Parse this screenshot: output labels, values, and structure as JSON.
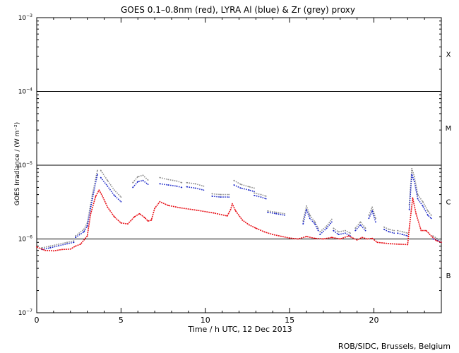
{
  "footer": "ROB/SIDC, Brussels, Belgium",
  "colors": {
    "goes": "#e8141b",
    "al": "#1a26c8",
    "zr": "#8c8c8c",
    "axis": "#000000"
  },
  "chart_data": {
    "type": "line",
    "title": "GOES 0.1–0.8nm (red), LYRA Al (blue) & Zr (grey) proxy",
    "xlabel": "Time / h UTC, 12 Dec 2013",
    "ylabel": "GOES Irradiance / (W m⁻²)",
    "xlim": [
      0,
      24
    ],
    "ylim": [
      1e-07,
      0.001
    ],
    "yscale": "log",
    "x_ticks": [
      0,
      5,
      10,
      15,
      20
    ],
    "x_tick_labels": [
      "0",
      "5",
      "10",
      "15",
      "20"
    ],
    "y_tick_labels": [
      {
        "value": 1e-07,
        "base": "10",
        "exp": "−7"
      },
      {
        "value": 1e-06,
        "base": "10",
        "exp": "−6"
      },
      {
        "value": 1e-05,
        "base": "10",
        "exp": "−5"
      },
      {
        "value": 0.0001,
        "base": "10",
        "exp": "−4"
      },
      {
        "value": 0.001,
        "base": "10",
        "exp": "−3"
      }
    ],
    "class_thresholds": [
      1e-06,
      1e-05,
      0.0001
    ],
    "flare_classes": [
      {
        "label": "X",
        "value": 0.00032
      },
      {
        "label": "M",
        "value": 3.2e-05
      },
      {
        "label": "C",
        "value": 3.2e-06
      },
      {
        "label": "B",
        "value": 3.2e-07
      }
    ],
    "series": [
      {
        "name": "GOES 0.1–0.8nm",
        "color": "red",
        "segments": [
          {
            "x": [
              0,
              0.5,
              1,
              1.5,
              2,
              2.3,
              2.6,
              3.0,
              3.2,
              3.5,
              3.7,
              3.9,
              4.2,
              4.6,
              5.0,
              5.4,
              5.8,
              6.1,
              6.4,
              6.6,
              6.8,
              7.0,
              7.3,
              7.8,
              8.5,
              9.5,
              10.5,
              11.3,
              11.5,
              11.6,
              11.8,
              12.2,
              12.6,
              13.0,
              13.5,
              14.0,
              15.0,
              15.5,
              16.0,
              16.5,
              17.0,
              17.5,
              18.0,
              18.5,
              19.0,
              19.3,
              19.6,
              19.9,
              20.2,
              20.6,
              21.0,
              21.5,
              22.0,
              22.1,
              22.3,
              22.5,
              22.8,
              23.1,
              23.4,
              23.7,
              24.0
            ],
            "y": [
              7.8e-07,
              7e-07,
              6.9e-07,
              7.2e-07,
              7.3e-07,
              8e-07,
              8.5e-07,
              1.1e-06,
              2.2e-06,
              3.8e-06,
              4.6e-06,
              3.8e-06,
              2.7e-06,
              2e-06,
              1.65e-06,
              1.6e-06,
              2e-06,
              2.2e-06,
              1.95e-06,
              1.75e-06,
              1.8e-06,
              2.6e-06,
              3.2e-06,
              2.85e-06,
              2.65e-06,
              2.45e-06,
              2.25e-06,
              2.05e-06,
              2.5e-06,
              3e-06,
              2.4e-06,
              1.8e-06,
              1.55e-06,
              1.4e-06,
              1.25e-06,
              1.15e-06,
              1.03e-06,
              1e-06,
              1.08e-06,
              1.02e-06,
              1e-06,
              1.05e-06,
              1e-06,
              1.1e-06,
              9.7e-07,
              1.05e-06,
              1e-06,
              1.02e-06,
              9e-07,
              8.8e-07,
              8.6e-07,
              8.5e-07,
              8.4e-07,
              1.4e-06,
              3.6e-06,
              2.2e-06,
              1.3e-06,
              1.3e-06,
              1.1e-06,
              9.5e-07,
              9e-07
            ]
          }
        ]
      },
      {
        "name": "LYRA Al proxy",
        "color": "blue",
        "segments": [
          {
            "x": [
              0.3,
              0.8,
              1.3,
              1.8,
              2.2
            ],
            "y": [
              7.2e-07,
              7.6e-07,
              8.1e-07,
              8.6e-07,
              9e-07
            ]
          },
          {
            "x": [
              2.3,
              2.8,
              3.0,
              3.3,
              3.6
            ],
            "y": [
              1.05e-06,
              1.25e-06,
              1.5e-06,
              3.5e-06,
              7.5e-06
            ]
          },
          {
            "x": [
              3.8,
              4.2,
              4.6,
              5.0
            ],
            "y": [
              6.8e-06,
              5.2e-06,
              3.9e-06,
              3.2e-06
            ]
          },
          {
            "x": [
              5.7,
              6.0,
              6.3,
              6.6
            ],
            "y": [
              5e-06,
              6e-06,
              6.2e-06,
              5.5e-06
            ]
          },
          {
            "x": [
              7.3,
              7.8,
              8.3,
              8.6
            ],
            "y": [
              5.6e-06,
              5.4e-06,
              5.2e-06,
              5e-06
            ]
          },
          {
            "x": [
              8.9,
              9.4,
              9.9
            ],
            "y": [
              5.1e-06,
              4.9e-06,
              4.6e-06
            ]
          },
          {
            "x": [
              10.4,
              10.9,
              11.4
            ],
            "y": [
              3.8e-06,
              3.7e-06,
              3.7e-06
            ]
          },
          {
            "x": [
              11.7,
              12.1,
              12.6,
              12.9
            ],
            "y": [
              5.4e-06,
              4.9e-06,
              4.6e-06,
              4.4e-06
            ]
          },
          {
            "x": [
              12.9,
              13.3,
              13.6
            ],
            "y": [
              3.9e-06,
              3.7e-06,
              3.5e-06
            ]
          },
          {
            "x": [
              13.7,
              14.2,
              14.7
            ],
            "y": [
              2.3e-06,
              2.2e-06,
              2.1e-06
            ]
          },
          {
            "x": [
              15.8,
              16.0,
              16.2,
              16.5,
              16.7
            ],
            "y": [
              1.6e-06,
              2.5e-06,
              1.9e-06,
              1.6e-06,
              1.3e-06
            ]
          },
          {
            "x": [
              16.8,
              17.2,
              17.5
            ],
            "y": [
              1.15e-06,
              1.4e-06,
              1.7e-06
            ]
          },
          {
            "x": [
              17.6,
              17.9,
              18.3,
              18.6
            ],
            "y": [
              1.3e-06,
              1.15e-06,
              1.2e-06,
              1.1e-06
            ]
          },
          {
            "x": [
              18.9,
              19.2,
              19.5
            ],
            "y": [
              1.3e-06,
              1.55e-06,
              1.3e-06
            ]
          },
          {
            "x": [
              19.7,
              19.9,
              20.1
            ],
            "y": [
              1.9e-06,
              2.4e-06,
              1.7e-06
            ]
          },
          {
            "x": [
              20.6,
              20.9,
              21.2
            ],
            "y": [
              1.35e-06,
              1.25e-06,
              1.2e-06
            ]
          },
          {
            "x": [
              21.4,
              21.7,
              22.0
            ],
            "y": [
              1.2e-06,
              1.15e-06,
              1.1e-06
            ]
          },
          {
            "x": [
              22.1,
              22.25,
              22.4,
              22.6,
              22.9,
              23.2,
              23.4
            ],
            "y": [
              2.5e-06,
              7.5e-06,
              6e-06,
              3.5e-06,
              2.8e-06,
              2.1e-06,
              1.9e-06
            ]
          },
          {
            "x": [
              23.5,
              23.8,
              24.0
            ],
            "y": [
              1e-06,
              9.5e-07,
              9e-07
            ]
          }
        ]
      },
      {
        "name": "LYRA Zr proxy",
        "color": "grey",
        "segments": [
          {
            "x": [
              0.3,
              0.8,
              1.3,
              1.8,
              2.2
            ],
            "y": [
              7.6e-07,
              8e-07,
              8.5e-07,
              9e-07,
              9.4e-07
            ]
          },
          {
            "x": [
              2.3,
              2.8,
              3.0,
              3.3,
              3.6
            ],
            "y": [
              1.1e-06,
              1.35e-06,
              1.65e-06,
              4e-06,
              8.5e-06
            ]
          },
          {
            "x": [
              3.8,
              4.2,
              4.6,
              5.0
            ],
            "y": [
              8.5e-06,
              6.2e-06,
              4.6e-06,
              3.7e-06
            ]
          },
          {
            "x": [
              5.7,
              6.0,
              6.3,
              6.6
            ],
            "y": [
              5.8e-06,
              7e-06,
              7.3e-06,
              6.3e-06
            ]
          },
          {
            "x": [
              7.3,
              7.8,
              8.3,
              8.6
            ],
            "y": [
              6.8e-06,
              6.4e-06,
              6.1e-06,
              5.8e-06
            ]
          },
          {
            "x": [
              8.9,
              9.4,
              9.9
            ],
            "y": [
              5.8e-06,
              5.6e-06,
              5.2e-06
            ]
          },
          {
            "x": [
              10.4,
              10.9,
              11.4
            ],
            "y": [
              4.1e-06,
              4e-06,
              4e-06
            ]
          },
          {
            "x": [
              11.7,
              12.1,
              12.6,
              12.9
            ],
            "y": [
              6.2e-06,
              5.5e-06,
              5.1e-06,
              4.9e-06
            ]
          },
          {
            "x": [
              12.9,
              13.3,
              13.6
            ],
            "y": [
              4.2e-06,
              4e-06,
              3.8e-06
            ]
          },
          {
            "x": [
              13.7,
              14.2,
              14.7
            ],
            "y": [
              2.4e-06,
              2.3e-06,
              2.2e-06
            ]
          },
          {
            "x": [
              15.8,
              16.0,
              16.2,
              16.5,
              16.7
            ],
            "y": [
              1.75e-06,
              2.8e-06,
              2.1e-06,
              1.7e-06,
              1.4e-06
            ]
          },
          {
            "x": [
              16.8,
              17.2,
              17.5
            ],
            "y": [
              1.25e-06,
              1.5e-06,
              1.85e-06
            ]
          },
          {
            "x": [
              17.6,
              17.9,
              18.3,
              18.6
            ],
            "y": [
              1.4e-06,
              1.25e-06,
              1.3e-06,
              1.2e-06
            ]
          },
          {
            "x": [
              18.9,
              19.2,
              19.5
            ],
            "y": [
              1.4e-06,
              1.7e-06,
              1.4e-06
            ]
          },
          {
            "x": [
              19.7,
              19.9,
              20.1
            ],
            "y": [
              2.1e-06,
              2.7e-06,
              1.9e-06
            ]
          },
          {
            "x": [
              20.6,
              20.9,
              21.2
            ],
            "y": [
              1.45e-06,
              1.35e-06,
              1.3e-06
            ]
          },
          {
            "x": [
              21.4,
              21.7,
              22.0
            ],
            "y": [
              1.3e-06,
              1.25e-06,
              1.2e-06
            ]
          },
          {
            "x": [
              22.1,
              22.25,
              22.4,
              22.6,
              22.9,
              23.2,
              23.4
            ],
            "y": [
              2.9e-06,
              9e-06,
              7e-06,
              4e-06,
              3.2e-06,
              2.4e-06,
              2.1e-06
            ]
          },
          {
            "x": [
              23.5,
              23.8,
              24.0
            ],
            "y": [
              1.1e-06,
              1e-06,
              9.5e-07
            ]
          }
        ]
      }
    ]
  }
}
